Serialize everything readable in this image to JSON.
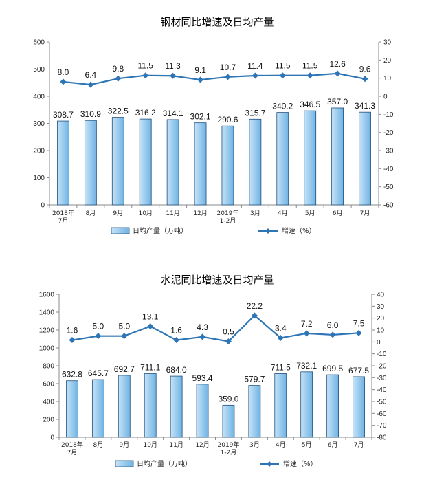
{
  "chart_data": [
    {
      "type": "bar+line",
      "title": "钢材同比增速及日均产量",
      "categories": [
        [
          "2018年",
          "7月"
        ],
        [
          "8月"
        ],
        [
          "9月"
        ],
        [
          "10月"
        ],
        [
          "11月"
        ],
        [
          "12月"
        ],
        [
          "2019年",
          "1-2月"
        ],
        [
          "3月"
        ],
        [
          "4月"
        ],
        [
          "5月"
        ],
        [
          "6月"
        ],
        [
          "7月"
        ]
      ],
      "bar_series": {
        "name": "日均产量（万吨）",
        "values": [
          308.7,
          310.9,
          322.5,
          316.2,
          314.1,
          302.1,
          290.6,
          315.7,
          340.2,
          346.5,
          357.0,
          341.3
        ],
        "labels": [
          "308.7",
          "310.9",
          "322.5",
          "316.2",
          "314.1",
          "302.1",
          "290.6",
          "315.7",
          "340.2",
          "346.5",
          "357.0",
          "341.3"
        ]
      },
      "line_series": {
        "name": "增速（%）",
        "values": [
          8.0,
          6.4,
          9.8,
          11.5,
          11.3,
          9.1,
          10.7,
          11.4,
          11.5,
          11.5,
          12.6,
          9.6
        ],
        "labels": [
          "8.0",
          "6.4",
          "9.8",
          "11.5",
          "11.3",
          "9.1",
          "10.7",
          "11.4",
          "11.5",
          "11.5",
          "12.6",
          "9.6"
        ]
      },
      "y_left": {
        "range": [
          0,
          600
        ],
        "ticks": [
          "0",
          "100",
          "200",
          "300",
          "400",
          "500",
          "600"
        ]
      },
      "y_right": {
        "range": [
          -60,
          30
        ],
        "ticks": [
          "-60",
          "-50",
          "-40",
          "-30",
          "-20",
          "-10",
          "0",
          "10",
          "20",
          "30"
        ]
      },
      "legend_placement": "bottom-center"
    },
    {
      "type": "bar+line",
      "title": "水泥同比增速及日均产量",
      "categories": [
        [
          "2018年",
          "7月"
        ],
        [
          "8月"
        ],
        [
          "9月"
        ],
        [
          "10月"
        ],
        [
          "11月"
        ],
        [
          "12月"
        ],
        [
          "2019年",
          "1-2月"
        ],
        [
          "3月"
        ],
        [
          "4月"
        ],
        [
          "5月"
        ],
        [
          "6月"
        ],
        [
          "7月"
        ]
      ],
      "bar_series": {
        "name": "日均产量（万吨）",
        "values": [
          632.8,
          645.7,
          692.7,
          711.1,
          684.0,
          593.4,
          359.0,
          579.7,
          711.5,
          732.1,
          699.5,
          677.5
        ],
        "labels": [
          "632.8",
          "645.7",
          "692.7",
          "711.1",
          "684.0",
          "593.4",
          "359.0",
          "579.7",
          "711.5",
          "732.1",
          "699.5",
          "677.5"
        ]
      },
      "line_series": {
        "name": "增速（%）",
        "values": [
          1.6,
          5.0,
          5.0,
          13.1,
          1.6,
          4.3,
          0.5,
          22.2,
          3.4,
          7.2,
          6.0,
          7.5
        ],
        "labels": [
          "1.6",
          "5.0",
          "5.0",
          "13.1",
          "1.6",
          "4.3",
          "0.5",
          "22.2",
          "3.4",
          "7.2",
          "6.0",
          "7.5"
        ]
      },
      "y_left": {
        "range": [
          0,
          1600
        ],
        "ticks": [
          "0",
          "200",
          "400",
          "600",
          "800",
          "1000",
          "1200",
          "1400",
          "1600"
        ]
      },
      "y_right": {
        "range": [
          -80,
          40
        ],
        "ticks": [
          "-80",
          "-70",
          "-60",
          "-50",
          "-40",
          "-30",
          "-20",
          "-10",
          "0",
          "10",
          "20",
          "30",
          "40"
        ]
      },
      "legend_placement": "bottom-center"
    }
  ],
  "colors": {
    "bar_fill_top": "#c6e3f7",
    "bar_fill_bottom": "#6fb3e4",
    "bar_stroke": "#1f4e79",
    "line": "#2e75b6",
    "axis": "#888888"
  }
}
